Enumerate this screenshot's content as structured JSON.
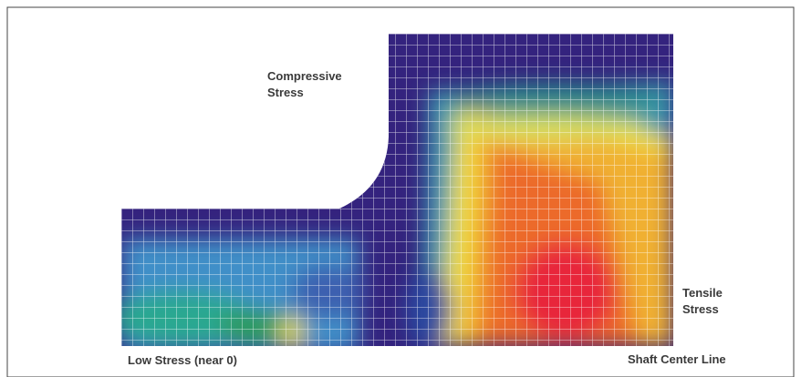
{
  "annotations": {
    "compressive": [
      "Compressive",
      "Stress"
    ],
    "low_stress": "Low Stress (near 0)",
    "tensile": [
      "Tensile",
      "Stress"
    ],
    "shaft_center_line": "Shaft Center Line"
  }
}
